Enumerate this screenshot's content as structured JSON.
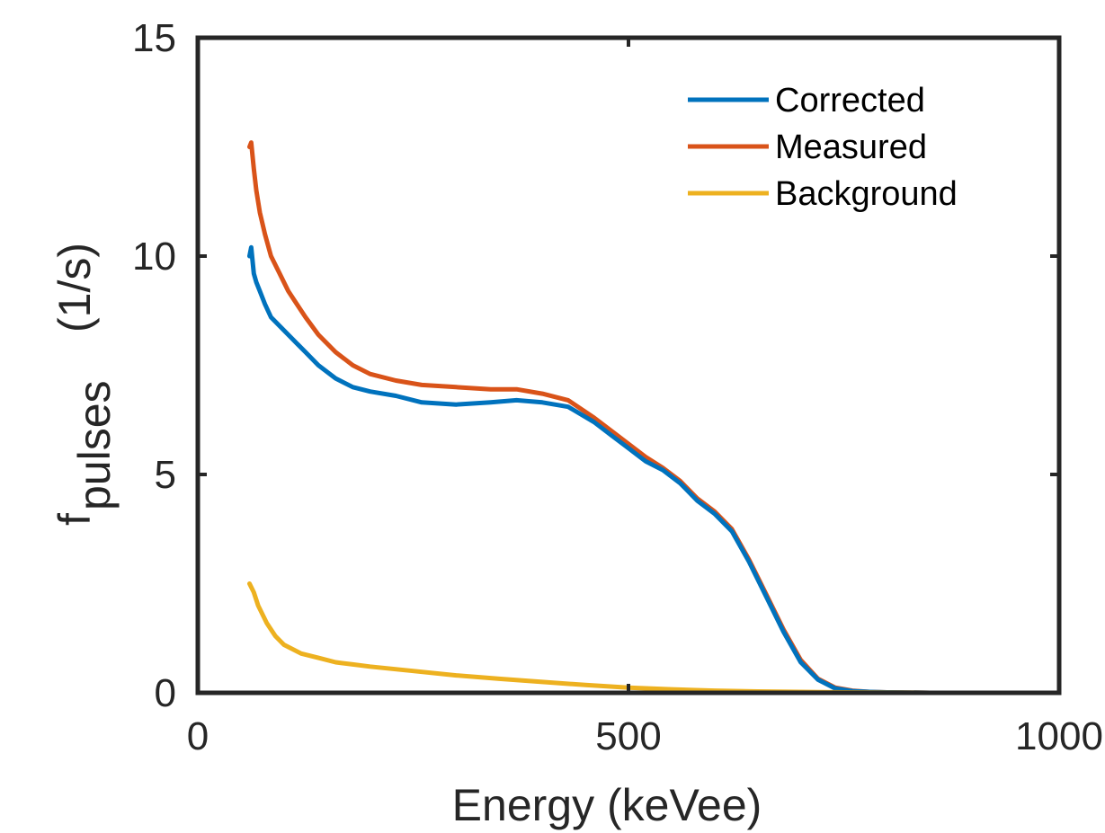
{
  "chart_data": {
    "type": "line",
    "xlabel": "Energy (keVee)",
    "ylabel_main": "f",
    "ylabel_sub": "pulses",
    "ylabel_unit": "(1/s)",
    "xlim": [
      0,
      1000
    ],
    "ylim": [
      0,
      15
    ],
    "xticks": [
      0,
      500,
      1000
    ],
    "yticks": [
      0,
      5,
      10,
      15
    ],
    "xtick_labels": [
      "0",
      "500",
      "1000"
    ],
    "ytick_labels": [
      "0",
      "5",
      "10",
      "15"
    ],
    "grid": false,
    "legend_position": "top-right",
    "colors": {
      "corrected": "#0072BD",
      "measured": "#D95319",
      "background": "#EDB120",
      "axis": "#262626"
    },
    "series": [
      {
        "name": "Corrected",
        "color": "#0072BD",
        "x": [
          60,
          62,
          65,
          68,
          72,
          78,
          85,
          95,
          105,
          115,
          125,
          140,
          160,
          180,
          200,
          230,
          260,
          300,
          340,
          370,
          400,
          430,
          460,
          480,
          500,
          520,
          540,
          560,
          580,
          600,
          620,
          640,
          660,
          680,
          700,
          720,
          740,
          760,
          780,
          800,
          850,
          900,
          950,
          1000
        ],
        "y": [
          10.0,
          10.2,
          9.6,
          9.4,
          9.2,
          8.9,
          8.6,
          8.4,
          8.2,
          8.0,
          7.8,
          7.5,
          7.2,
          7.0,
          6.9,
          6.8,
          6.65,
          6.6,
          6.65,
          6.7,
          6.65,
          6.55,
          6.2,
          5.9,
          5.6,
          5.3,
          5.1,
          4.8,
          4.4,
          4.1,
          3.7,
          3.0,
          2.2,
          1.4,
          0.7,
          0.3,
          0.1,
          0.04,
          0.02,
          0.01,
          0.0,
          0.0,
          0.0,
          0.0
        ]
      },
      {
        "name": "Measured",
        "color": "#D95319",
        "x": [
          60,
          62,
          65,
          68,
          72,
          78,
          85,
          95,
          105,
          115,
          125,
          140,
          160,
          180,
          200,
          230,
          260,
          300,
          340,
          370,
          400,
          430,
          460,
          480,
          500,
          520,
          540,
          560,
          580,
          600,
          620,
          640,
          660,
          680,
          700,
          720,
          740,
          760,
          780,
          800,
          850,
          900,
          950,
          1000
        ],
        "y": [
          12.5,
          12.6,
          12.0,
          11.5,
          11.0,
          10.5,
          10.0,
          9.6,
          9.2,
          8.9,
          8.6,
          8.2,
          7.8,
          7.5,
          7.3,
          7.15,
          7.05,
          7.0,
          6.95,
          6.95,
          6.85,
          6.7,
          6.3,
          6.0,
          5.7,
          5.4,
          5.15,
          4.85,
          4.45,
          4.15,
          3.75,
          3.05,
          2.25,
          1.45,
          0.75,
          0.32,
          0.12,
          0.05,
          0.02,
          0.01,
          0.0,
          0.0,
          0.0,
          0.0
        ]
      },
      {
        "name": "Background",
        "color": "#EDB120",
        "x": [
          60,
          65,
          70,
          80,
          90,
          100,
          120,
          140,
          160,
          180,
          200,
          250,
          300,
          350,
          400,
          450,
          500,
          550,
          600,
          650,
          700,
          750,
          800,
          850,
          900,
          950,
          1000
        ],
        "y": [
          2.5,
          2.3,
          2.0,
          1.6,
          1.3,
          1.1,
          0.9,
          0.8,
          0.7,
          0.65,
          0.6,
          0.5,
          0.4,
          0.32,
          0.25,
          0.18,
          0.12,
          0.08,
          0.05,
          0.03,
          0.02,
          0.01,
          0.005,
          0.0,
          0.0,
          0.0,
          0.0
        ]
      }
    ]
  }
}
